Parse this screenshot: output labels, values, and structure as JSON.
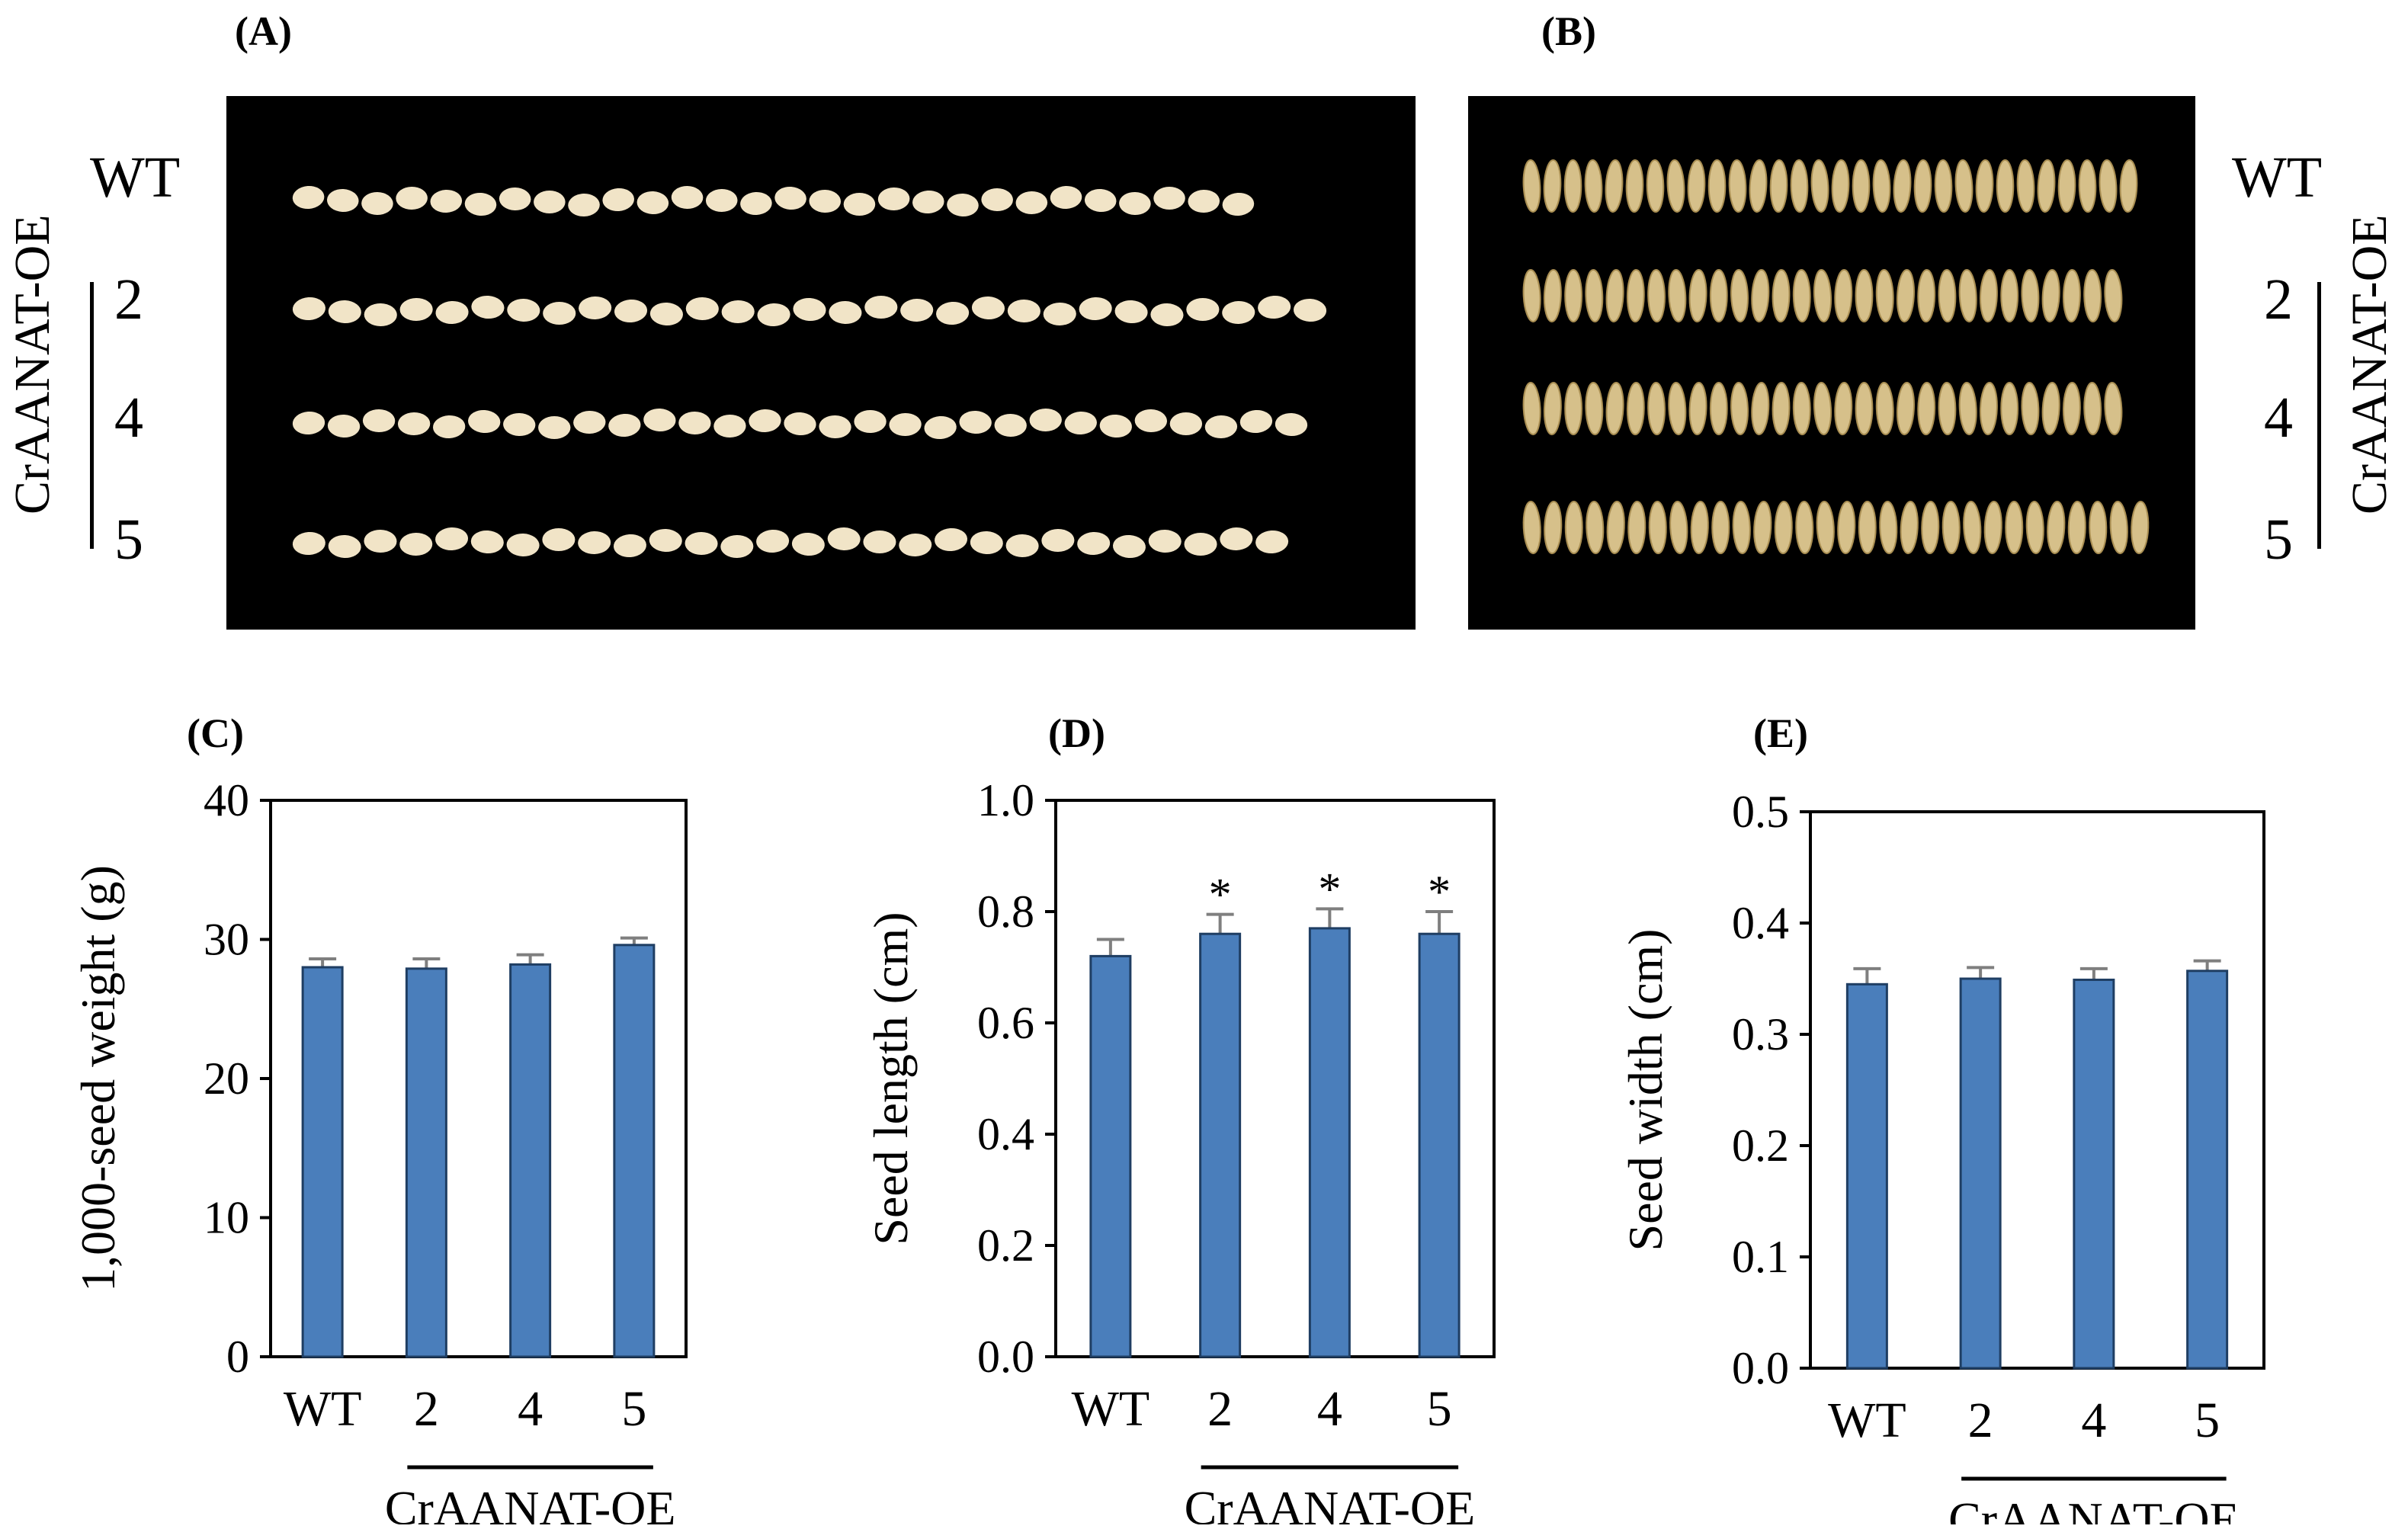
{
  "photos": {
    "A": {
      "letter": "(A)",
      "background": "#000000",
      "seed_color": "#f1e4c7",
      "rows": [
        {
          "label": "WT",
          "seed_count": 28
        },
        {
          "label": "2",
          "seed_count": 29
        },
        {
          "label": "4",
          "seed_count": 29
        },
        {
          "label": "5",
          "seed_count": 28
        }
      ],
      "group_label": "CrAANAT-OE"
    },
    "B": {
      "letter": "(B)",
      "background": "#000000",
      "seed_color": "#d6c08a",
      "rows": [
        {
          "label": "WT",
          "seed_count": 30
        },
        {
          "label": "2",
          "seed_count": 29
        },
        {
          "label": "4",
          "seed_count": 29
        },
        {
          "label": "5",
          "seed_count": 30
        }
      ],
      "group_label": "CrAANAT-OE"
    }
  },
  "chart_data": [
    {
      "letter": "(C)",
      "type": "bar",
      "categories": [
        "WT",
        "2",
        "4",
        "5"
      ],
      "values": [
        28.0,
        27.9,
        28.2,
        29.6
      ],
      "errors": [
        0.6,
        0.7,
        0.7,
        0.5
      ],
      "significance": [
        "",
        "",
        "",
        ""
      ],
      "ylabel": "1,000-seed weight (g)",
      "group_label": "CrAANAT-OE",
      "ylim": [
        0,
        40
      ],
      "yticks": [
        "0",
        "10",
        "20",
        "30",
        "40"
      ],
      "tick_values": [
        0,
        10,
        20,
        30,
        40
      ],
      "bar_color": "#4a7ebb",
      "error_color": "#7f7f7f"
    },
    {
      "letter": "(D)",
      "type": "bar",
      "categories": [
        "WT",
        "2",
        "4",
        "5"
      ],
      "values": [
        0.72,
        0.76,
        0.77,
        0.76
      ],
      "errors": [
        0.03,
        0.035,
        0.035,
        0.04
      ],
      "significance": [
        "",
        "*",
        "*",
        "*"
      ],
      "ylabel": "Seed length (cm)",
      "group_label": "CrAANAT-OE",
      "ylim": [
        0,
        1.0
      ],
      "yticks": [
        "0.0",
        "0.2",
        "0.4",
        "0.6",
        "0.8",
        "1.0"
      ],
      "tick_values": [
        0,
        0.2,
        0.4,
        0.6,
        0.8,
        1.0
      ],
      "bar_color": "#4a7ebb",
      "error_color": "#7f7f7f"
    },
    {
      "letter": "(E)",
      "type": "bar",
      "categories": [
        "WT",
        "2",
        "4",
        "5"
      ],
      "values": [
        0.345,
        0.35,
        0.349,
        0.357
      ],
      "errors": [
        0.014,
        0.01,
        0.01,
        0.009
      ],
      "significance": [
        "",
        "",
        "",
        ""
      ],
      "ylabel": "Seed width (cm)",
      "group_label": "CrAANAT-OE",
      "ylim": [
        0,
        0.5
      ],
      "yticks": [
        "0.0",
        "0.1",
        "0.2",
        "0.3",
        "0.4",
        "0.5"
      ],
      "tick_values": [
        0,
        0.1,
        0.2,
        0.3,
        0.4,
        0.5
      ],
      "bar_color": "#4a7ebb",
      "error_color": "#7f7f7f"
    }
  ]
}
